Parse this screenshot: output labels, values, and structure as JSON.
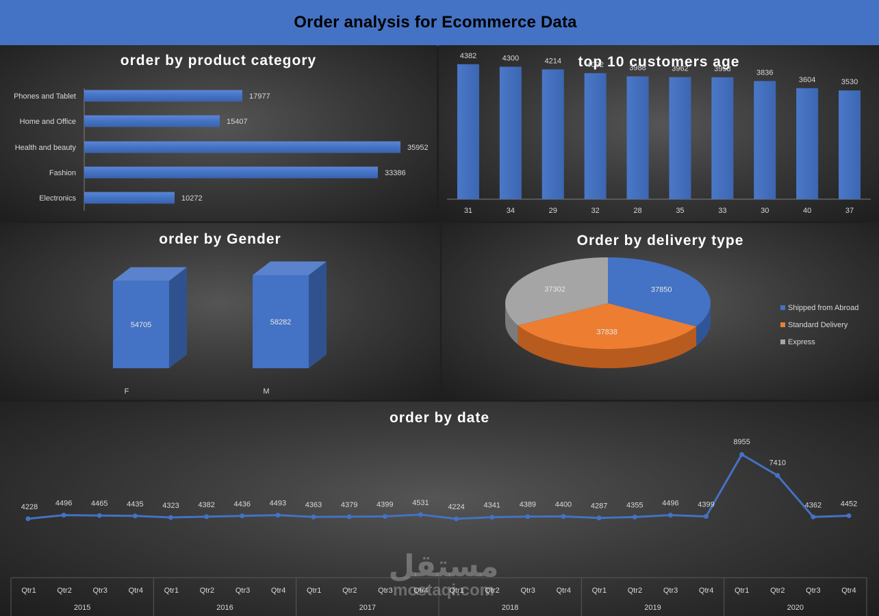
{
  "header": {
    "title": "Order analysis for Ecommerce Data"
  },
  "watermark": {
    "arabic": "مستقل",
    "latin": "mostaqi.com"
  },
  "colors": {
    "bar": "#4472c4",
    "bar_dark": "#2f528f",
    "bar_top": "#5b82cc",
    "pie_blue": "#4472c4",
    "pie_orange": "#ed7d31",
    "pie_gray": "#a5a5a5",
    "line": "#4472c4",
    "text": "#d9d9d9"
  },
  "panels": {
    "category": {
      "title": "order by product category"
    },
    "age": {
      "title": "top 10 customers age"
    },
    "gender": {
      "title": "order by Gender"
    },
    "delivery": {
      "title": "Order by delivery type"
    },
    "date": {
      "title": "order by date"
    }
  },
  "chart_data": [
    {
      "id": "category",
      "type": "bar",
      "orientation": "horizontal",
      "title": "order by product category",
      "categories": [
        "Phones and Tablet",
        "Home and Office",
        "Health and beauty",
        "Fashion",
        "Electronics"
      ],
      "values": [
        17977,
        15407,
        35952,
        33386,
        10272
      ],
      "xlim": [
        0,
        40000
      ],
      "data_labels": true
    },
    {
      "id": "age",
      "type": "bar",
      "title": "top 10 customers age",
      "categories": [
        "31",
        "34",
        "29",
        "32",
        "28",
        "35",
        "33",
        "30",
        "40",
        "37"
      ],
      "values": [
        4382,
        4300,
        4214,
        4092,
        3988,
        3962,
        3958,
        3836,
        3604,
        3530
      ],
      "ylim": [
        0,
        4600
      ],
      "data_labels": true
    },
    {
      "id": "gender",
      "type": "bar",
      "style": "3d",
      "title": "order by Gender",
      "categories": [
        "F",
        "M"
      ],
      "values": [
        54705,
        58282
      ],
      "data_labels": true
    },
    {
      "id": "delivery",
      "type": "pie",
      "style": "3d",
      "title": "Order by delivery type",
      "labels": [
        "Shipped from Abroad",
        "Standard Delivery",
        "Express"
      ],
      "values": [
        37850,
        37838,
        37302
      ],
      "legend": "right"
    },
    {
      "id": "date",
      "type": "line",
      "title": "order by date",
      "years": [
        "2015",
        "2016",
        "2017",
        "2018",
        "2019",
        "2020"
      ],
      "quarters": [
        "Qtr1",
        "Qtr2",
        "Qtr3",
        "Qtr4"
      ],
      "values": [
        4228,
        4496,
        4465,
        4435,
        4323,
        4382,
        4436,
        4493,
        4363,
        4379,
        4399,
        4531,
        4224,
        4341,
        4389,
        4400,
        4287,
        4355,
        4496,
        4399,
        8955,
        7410,
        4362,
        4452
      ],
      "data_labels": true
    }
  ]
}
